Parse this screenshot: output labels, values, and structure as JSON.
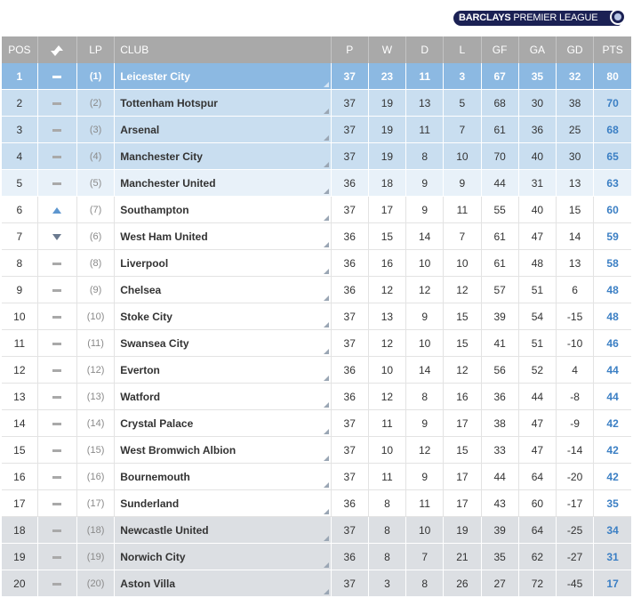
{
  "brand": {
    "bold": "BARCLAYS",
    "rest": " PREMIER LEAGUE"
  },
  "headers": {
    "pos": "POS",
    "lp": "LP",
    "club": "CLUB",
    "p": "P",
    "w": "W",
    "d": "D",
    "l": "L",
    "gf": "GF",
    "ga": "GA",
    "gd": "GD",
    "pts": "PTS"
  },
  "rows": [
    {
      "pos": "1",
      "move": "same",
      "lp": "(1)",
      "club": "Leicester City",
      "p": "37",
      "w": "23",
      "d": "11",
      "l": "3",
      "gf": "67",
      "ga": "35",
      "gd": "32",
      "pts": "80",
      "zone": "first"
    },
    {
      "pos": "2",
      "move": "same",
      "lp": "(2)",
      "club": "Tottenham Hotspur",
      "p": "37",
      "w": "19",
      "d": "13",
      "l": "5",
      "gf": "68",
      "ga": "30",
      "gd": "38",
      "pts": "70",
      "zone": "cl"
    },
    {
      "pos": "3",
      "move": "same",
      "lp": "(3)",
      "club": "Arsenal",
      "p": "37",
      "w": "19",
      "d": "11",
      "l": "7",
      "gf": "61",
      "ga": "36",
      "gd": "25",
      "pts": "68",
      "zone": "cl"
    },
    {
      "pos": "4",
      "move": "same",
      "lp": "(4)",
      "club": "Manchester City",
      "p": "37",
      "w": "19",
      "d": "8",
      "l": "10",
      "gf": "70",
      "ga": "40",
      "gd": "30",
      "pts": "65",
      "zone": "cl"
    },
    {
      "pos": "5",
      "move": "same",
      "lp": "(5)",
      "club": "Manchester United",
      "p": "36",
      "w": "18",
      "d": "9",
      "l": "9",
      "gf": "44",
      "ga": "31",
      "gd": "13",
      "pts": "63",
      "zone": "el"
    },
    {
      "pos": "6",
      "move": "up",
      "lp": "(7)",
      "club": "Southampton",
      "p": "37",
      "w": "17",
      "d": "9",
      "l": "11",
      "gf": "55",
      "ga": "40",
      "gd": "15",
      "pts": "60",
      "zone": "mid"
    },
    {
      "pos": "7",
      "move": "down",
      "lp": "(6)",
      "club": "West Ham United",
      "p": "36",
      "w": "15",
      "d": "14",
      "l": "7",
      "gf": "61",
      "ga": "47",
      "gd": "14",
      "pts": "59",
      "zone": "mid"
    },
    {
      "pos": "8",
      "move": "same",
      "lp": "(8)",
      "club": "Liverpool",
      "p": "36",
      "w": "16",
      "d": "10",
      "l": "10",
      "gf": "61",
      "ga": "48",
      "gd": "13",
      "pts": "58",
      "zone": "mid"
    },
    {
      "pos": "9",
      "move": "same",
      "lp": "(9)",
      "club": "Chelsea",
      "p": "36",
      "w": "12",
      "d": "12",
      "l": "12",
      "gf": "57",
      "ga": "51",
      "gd": "6",
      "pts": "48",
      "zone": "mid"
    },
    {
      "pos": "10",
      "move": "same",
      "lp": "(10)",
      "club": "Stoke City",
      "p": "37",
      "w": "13",
      "d": "9",
      "l": "15",
      "gf": "39",
      "ga": "54",
      "gd": "-15",
      "pts": "48",
      "zone": "mid"
    },
    {
      "pos": "11",
      "move": "same",
      "lp": "(11)",
      "club": "Swansea City",
      "p": "37",
      "w": "12",
      "d": "10",
      "l": "15",
      "gf": "41",
      "ga": "51",
      "gd": "-10",
      "pts": "46",
      "zone": "mid"
    },
    {
      "pos": "12",
      "move": "same",
      "lp": "(12)",
      "club": "Everton",
      "p": "36",
      "w": "10",
      "d": "14",
      "l": "12",
      "gf": "56",
      "ga": "52",
      "gd": "4",
      "pts": "44",
      "zone": "mid"
    },
    {
      "pos": "13",
      "move": "same",
      "lp": "(13)",
      "club": "Watford",
      "p": "36",
      "w": "12",
      "d": "8",
      "l": "16",
      "gf": "36",
      "ga": "44",
      "gd": "-8",
      "pts": "44",
      "zone": "mid"
    },
    {
      "pos": "14",
      "move": "same",
      "lp": "(14)",
      "club": "Crystal Palace",
      "p": "37",
      "w": "11",
      "d": "9",
      "l": "17",
      "gf": "38",
      "ga": "47",
      "gd": "-9",
      "pts": "42",
      "zone": "mid"
    },
    {
      "pos": "15",
      "move": "same",
      "lp": "(15)",
      "club": "West Bromwich Albion",
      "p": "37",
      "w": "10",
      "d": "12",
      "l": "15",
      "gf": "33",
      "ga": "47",
      "gd": "-14",
      "pts": "42",
      "zone": "mid"
    },
    {
      "pos": "16",
      "move": "same",
      "lp": "(16)",
      "club": "Bournemouth",
      "p": "37",
      "w": "11",
      "d": "9",
      "l": "17",
      "gf": "44",
      "ga": "64",
      "gd": "-20",
      "pts": "42",
      "zone": "mid"
    },
    {
      "pos": "17",
      "move": "same",
      "lp": "(17)",
      "club": "Sunderland",
      "p": "36",
      "w": "8",
      "d": "11",
      "l": "17",
      "gf": "43",
      "ga": "60",
      "gd": "-17",
      "pts": "35",
      "zone": "mid"
    },
    {
      "pos": "18",
      "move": "same",
      "lp": "(18)",
      "club": "Newcastle United",
      "p": "37",
      "w": "8",
      "d": "10",
      "l": "19",
      "gf": "39",
      "ga": "64",
      "gd": "-25",
      "pts": "34",
      "zone": "rel"
    },
    {
      "pos": "19",
      "move": "same",
      "lp": "(19)",
      "club": "Norwich City",
      "p": "36",
      "w": "8",
      "d": "7",
      "l": "21",
      "gf": "35",
      "ga": "62",
      "gd": "-27",
      "pts": "31",
      "zone": "rel"
    },
    {
      "pos": "20",
      "move": "same",
      "lp": "(20)",
      "club": "Aston Villa",
      "p": "37",
      "w": "3",
      "d": "8",
      "l": "26",
      "gf": "27",
      "ga": "72",
      "gd": "-45",
      "pts": "17",
      "zone": "rel"
    }
  ],
  "colors": {
    "header_bg": "#a9a9a9",
    "leader_bg": "#8cb9e2",
    "champions_league_bg": "#c9def0",
    "europa_league_bg": "#e8f1f9",
    "relegation_bg": "#dcdfe3",
    "points_text": "#3b7fc4"
  }
}
